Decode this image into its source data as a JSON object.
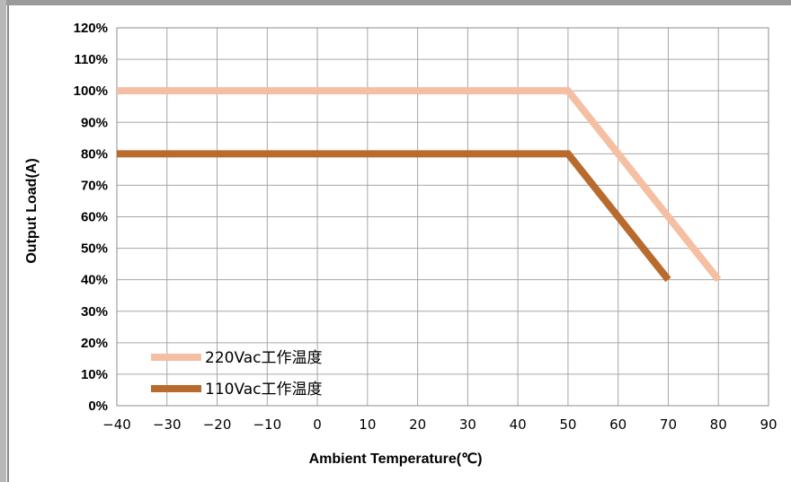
{
  "chart_data": {
    "type": "line",
    "xlabel": "Ambient Temperature(℃)",
    "ylabel": "Output Load(A)",
    "xlim": [
      -40,
      90
    ],
    "ylim": [
      0,
      120
    ],
    "x_ticks": [
      "−40",
      "−30",
      "−20",
      "−10",
      "0",
      "10",
      "20",
      "30",
      "40",
      "50",
      "60",
      "70",
      "80",
      "90"
    ],
    "y_ticks": [
      "0%",
      "10%",
      "20%",
      "30%",
      "40%",
      "50%",
      "60%",
      "70%",
      "80%",
      "90%",
      "100%",
      "110%",
      "120%"
    ],
    "grid": true,
    "legend_position": "bottom-left",
    "series": [
      {
        "name": "220Vac工作温度",
        "color": "#f5bfa3",
        "points": [
          [
            -40,
            100
          ],
          [
            50,
            100
          ],
          [
            80,
            40
          ]
        ]
      },
      {
        "name": "110Vac工作温度",
        "color": "#b86b2c",
        "points": [
          [
            -40,
            80
          ],
          [
            50,
            80
          ],
          [
            70,
            40
          ]
        ]
      }
    ]
  }
}
